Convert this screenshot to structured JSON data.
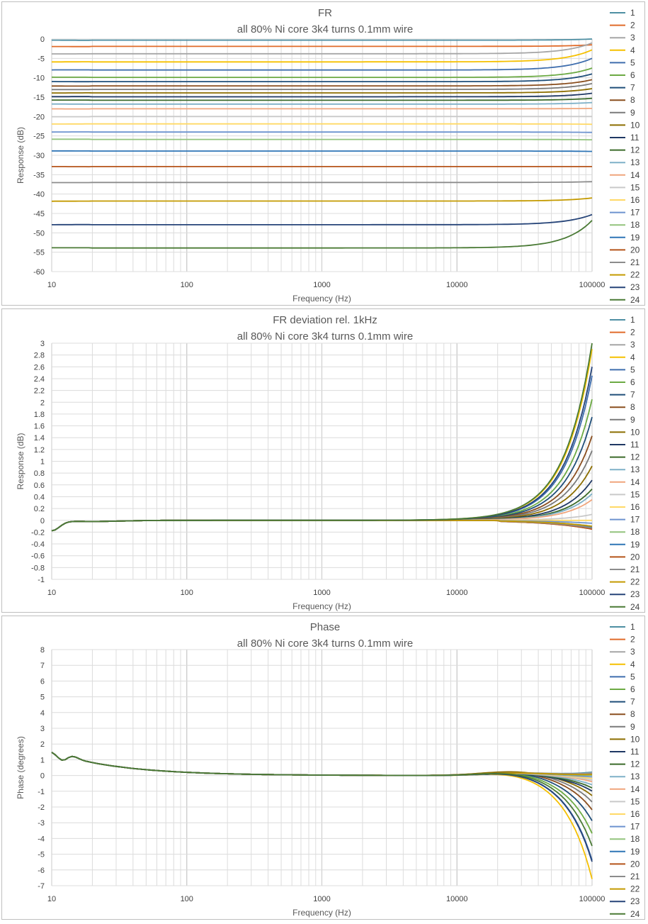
{
  "colors": [
    "#4e8fa3",
    "#e06b2a",
    "#a6a6a6",
    "#f5c000",
    "#3f6eae",
    "#6caa44",
    "#1f4e79",
    "#8a4e1e",
    "#7a7a7a",
    "#8c6e00",
    "#1f3864",
    "#3b6b2a",
    "#7fb1c8",
    "#f0a57c",
    "#c9c9c9",
    "#ffd966",
    "#6d93cf",
    "#93c47d",
    "#2e75b6",
    "#b5541a",
    "#8c8c8c",
    "#c49a00",
    "#264478",
    "#4a7a35"
  ],
  "charts": [
    {
      "name": "fr",
      "title_line1": "FR",
      "title_line2": "all 80% Ni core 3k4 turns 0.1mm wire",
      "xlabel": "Frequency (Hz)",
      "ylabel": "Response (dB)",
      "x_ticks": [
        "10",
        "100",
        "1000",
        "10000",
        "100000"
      ],
      "y_ticks": [
        "0",
        "-5",
        "-10",
        "-15",
        "-20",
        "-25",
        "-30",
        "-35",
        "-40",
        "-45",
        "-50",
        "-55",
        "-60"
      ],
      "legend": [
        "1",
        "2",
        "3",
        "4",
        "5",
        "6",
        "7",
        "8",
        "9",
        "10",
        "11",
        "12",
        "13",
        "14",
        "15",
        "16",
        "17",
        "18",
        "19",
        "20",
        "21",
        "22",
        "23",
        "24"
      ]
    },
    {
      "name": "deviation",
      "title_line1": "FR deviation rel. 1kHz",
      "title_line2": "all 80% Ni core 3k4 turns 0.1mm wire",
      "xlabel": "Frequency (Hz)",
      "ylabel": "Response (dB)",
      "x_ticks": [
        "10",
        "100",
        "1000",
        "10000",
        "100000"
      ],
      "y_ticks": [
        "3",
        "2.8",
        "2.6",
        "2.4",
        "2.2",
        "2",
        "1.8",
        "1.6",
        "1.4",
        "1.2",
        "1",
        "0.8",
        "0.6",
        "0.4",
        "0.2",
        "0",
        "-0.2",
        "-0.4",
        "-0.6",
        "-0.8",
        "-1"
      ],
      "legend": [
        "1",
        "2",
        "3",
        "4",
        "5",
        "6",
        "7",
        "8",
        "9",
        "10",
        "11",
        "12",
        "13",
        "14",
        "15",
        "16",
        "17",
        "18",
        "19",
        "20",
        "21",
        "22",
        "23",
        "24"
      ]
    },
    {
      "name": "phase",
      "title_line1": "Phase",
      "title_line2": "all 80% Ni core 3k4 turns 0.1mm wire",
      "xlabel": "Frequency (Hz)",
      "ylabel": "Phase (degrees)",
      "x_ticks": [
        "10",
        "100",
        "1000",
        "10000",
        "100000"
      ],
      "y_ticks": [
        "8",
        "7",
        "6",
        "5",
        "4",
        "3",
        "2",
        "1",
        "0",
        "-1",
        "-2",
        "-3",
        "-4",
        "-5",
        "-6",
        "-7"
      ],
      "legend": [
        "1",
        "2",
        "3",
        "4",
        "5",
        "6",
        "7",
        "8",
        "9",
        "10",
        "11",
        "12",
        "13",
        "14",
        "15",
        "16",
        "17",
        "18",
        "19",
        "20",
        "21",
        "22",
        "23",
        "24"
      ]
    }
  ],
  "chart_data": [
    {
      "type": "line",
      "title": "FR",
      "subtitle": "all 80% Ni core 3k4 turns 0.1mm wire",
      "xlabel": "Frequency (Hz)",
      "ylabel": "Response (dB)",
      "x_scale": "log",
      "xlim": [
        10,
        100000
      ],
      "ylim": [
        -60,
        0
      ],
      "grid": true,
      "legend_position": "right",
      "series": [
        {
          "name": "1",
          "level": -0.3,
          "hf_end": 0
        },
        {
          "name": "2",
          "level": -1.9,
          "hf_end": -1.5
        },
        {
          "name": "3",
          "level": -3.8,
          "hf_end": -1.0
        },
        {
          "name": "4",
          "level": -5.9,
          "hf_end": -2.8
        },
        {
          "name": "5",
          "level": -8.0,
          "hf_end": -5.0
        },
        {
          "name": "6",
          "level": -9.9,
          "hf_end": -7.5
        },
        {
          "name": "7",
          "level": -11.0,
          "hf_end": -9.0
        },
        {
          "name": "8",
          "level": -12.1,
          "hf_end": -10.5
        },
        {
          "name": "9",
          "level": -13.0,
          "hf_end": -11.5
        },
        {
          "name": "10",
          "level": -13.9,
          "hf_end": -12.8
        },
        {
          "name": "11",
          "level": -14.9,
          "hf_end": -14.0
        },
        {
          "name": "12",
          "level": -15.8,
          "hf_end": -15.3
        },
        {
          "name": "13",
          "level": -16.8,
          "hf_end": -16.4
        },
        {
          "name": "14",
          "level": -18.0,
          "hf_end": -17.9
        },
        {
          "name": "15",
          "level": -20.0,
          "hf_end": -20.0
        },
        {
          "name": "16",
          "level": -21.9,
          "hf_end": -22.0
        },
        {
          "name": "17",
          "level": -24.0,
          "hf_end": -24.1
        },
        {
          "name": "18",
          "level": -25.9,
          "hf_end": -26.0
        },
        {
          "name": "19",
          "level": -28.9,
          "hf_end": -29.0
        },
        {
          "name": "20",
          "level": -32.9,
          "hf_end": -32.9
        },
        {
          "name": "21",
          "level": -37.0,
          "hf_end": -36.8
        },
        {
          "name": "22",
          "level": -41.8,
          "hf_end": -41.0
        },
        {
          "name": "23",
          "level": -47.9,
          "hf_end": -45.3
        },
        {
          "name": "24",
          "level": -53.9,
          "hf_end": -46.8
        }
      ]
    },
    {
      "type": "line",
      "title": "FR deviation rel. 1kHz",
      "subtitle": "all 80% Ni core 3k4 turns 0.1mm wire",
      "xlabel": "Frequency (Hz)",
      "ylabel": "Response (dB)",
      "x_scale": "log",
      "xlim": [
        10,
        100000
      ],
      "ylim": [
        -1,
        3
      ],
      "grid": true,
      "legend_position": "right",
      "series": [
        {
          "name": "1",
          "hf_end": -0.12
        },
        {
          "name": "2",
          "hf_end": -0.15
        },
        {
          "name": "3",
          "hf_end": -0.1
        },
        {
          "name": "4",
          "hf_end": 2.9
        },
        {
          "name": "5",
          "hf_end": 2.45
        },
        {
          "name": "6",
          "hf_end": 2.05
        },
        {
          "name": "7",
          "hf_end": 1.75
        },
        {
          "name": "8",
          "hf_end": 1.43
        },
        {
          "name": "9",
          "hf_end": 1.18
        },
        {
          "name": "10",
          "hf_end": 0.92
        },
        {
          "name": "11",
          "hf_end": 0.68
        },
        {
          "name": "12",
          "hf_end": 0.53
        },
        {
          "name": "13",
          "hf_end": 0.45
        },
        {
          "name": "14",
          "hf_end": 0.35
        },
        {
          "name": "15",
          "hf_end": 0.1
        },
        {
          "name": "16",
          "hf_end": 0.0
        },
        {
          "name": "17",
          "hf_end": -0.05
        },
        {
          "name": "18",
          "hf_end": -0.1
        },
        {
          "name": "19",
          "hf_end": -0.12
        },
        {
          "name": "20",
          "hf_end": -0.15
        },
        {
          "name": "21",
          "hf_end": -0.13
        },
        {
          "name": "22",
          "hf_end": -0.1
        },
        {
          "name": "23",
          "hf_end": 2.6
        },
        {
          "name": "24",
          "hf_end": 3.0
        }
      ]
    },
    {
      "type": "line",
      "title": "Phase",
      "subtitle": "all 80% Ni core 3k4 turns 0.1mm wire",
      "xlabel": "Frequency (Hz)",
      "ylabel": "Phase (degrees)",
      "x_scale": "log",
      "xlim": [
        10,
        100000
      ],
      "ylim": [
        -7,
        8
      ],
      "grid": true,
      "legend_position": "right",
      "series": [
        {
          "name": "1",
          "hf_end": 0.2
        },
        {
          "name": "2",
          "hf_end": 0.1
        },
        {
          "name": "3",
          "hf_end": 0.15
        },
        {
          "name": "4",
          "hf_end": -6.6
        },
        {
          "name": "5",
          "hf_end": -5.4
        },
        {
          "name": "6",
          "hf_end": -3.7
        },
        {
          "name": "7",
          "hf_end": -2.9
        },
        {
          "name": "8",
          "hf_end": -2.2
        },
        {
          "name": "9",
          "hf_end": -1.7
        },
        {
          "name": "10",
          "hf_end": -1.3
        },
        {
          "name": "11",
          "hf_end": -1.0
        },
        {
          "name": "12",
          "hf_end": -0.8
        },
        {
          "name": "13",
          "hf_end": -0.6
        },
        {
          "name": "14",
          "hf_end": -0.4
        },
        {
          "name": "15",
          "hf_end": -0.3
        },
        {
          "name": "16",
          "hf_end": -0.2
        },
        {
          "name": "17",
          "hf_end": -0.1
        },
        {
          "name": "18",
          "hf_end": 0.0
        },
        {
          "name": "19",
          "hf_end": 0.05
        },
        {
          "name": "20",
          "hf_end": 0.1
        },
        {
          "name": "21",
          "hf_end": 0.1
        },
        {
          "name": "22",
          "hf_end": 0.05
        },
        {
          "name": "23",
          "hf_end": -5.5
        },
        {
          "name": "24",
          "hf_end": -4.5
        }
      ]
    }
  ]
}
